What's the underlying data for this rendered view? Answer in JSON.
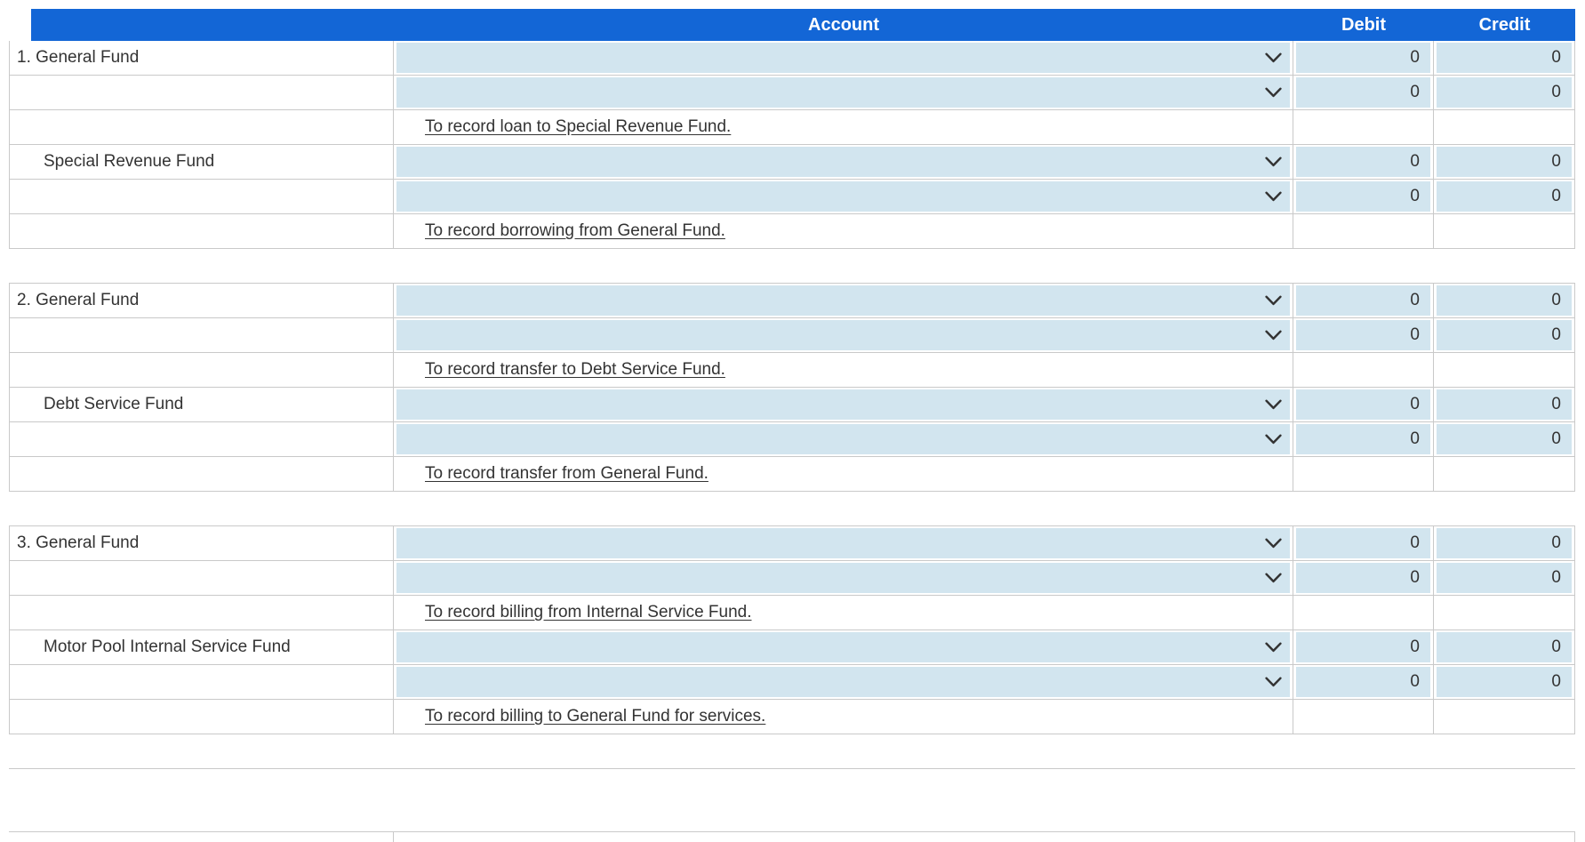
{
  "header": {
    "account": "Account",
    "debit": "Debit",
    "credit": "Credit"
  },
  "colors": {
    "header_bg": "#1366d6",
    "field_bg": "#d2e5ef",
    "border": "#c9c9c9",
    "text": "#333333"
  },
  "rows": [
    {
      "type": "entry",
      "fund": "1. General Fund",
      "account": "",
      "debit": "0",
      "credit": "0"
    },
    {
      "type": "entry",
      "fund": "",
      "account": "",
      "debit": "0",
      "credit": "0"
    },
    {
      "type": "description",
      "text": "To record loan to Special Revenue Fund."
    },
    {
      "type": "entry",
      "fund": "Special Revenue Fund",
      "account": "",
      "debit": "0",
      "credit": "0"
    },
    {
      "type": "entry",
      "fund": "",
      "account": "",
      "debit": "0",
      "credit": "0"
    },
    {
      "type": "description",
      "text": "To record borrowing from General Fund."
    },
    {
      "type": "spacer"
    },
    {
      "type": "entry",
      "fund": "2. General Fund",
      "account": "",
      "debit": "0",
      "credit": "0"
    },
    {
      "type": "entry",
      "fund": "",
      "account": "",
      "debit": "0",
      "credit": "0"
    },
    {
      "type": "description",
      "text": "To record transfer to Debt Service Fund."
    },
    {
      "type": "entry",
      "fund": "Debt Service Fund",
      "account": "",
      "debit": "0",
      "credit": "0"
    },
    {
      "type": "entry",
      "fund": "",
      "account": "",
      "debit": "0",
      "credit": "0"
    },
    {
      "type": "description",
      "text": "To record transfer from General Fund."
    },
    {
      "type": "spacer"
    },
    {
      "type": "entry",
      "fund": "3. General Fund",
      "account": "",
      "debit": "0",
      "credit": "0"
    },
    {
      "type": "entry",
      "fund": "",
      "account": "",
      "debit": "0",
      "credit": "0"
    },
    {
      "type": "description",
      "text": "To record billing from Internal Service Fund."
    },
    {
      "type": "entry",
      "fund": "Motor Pool Internal Service Fund",
      "account": "",
      "debit": "0",
      "credit": "0"
    },
    {
      "type": "entry",
      "fund": "",
      "account": "",
      "debit": "0",
      "credit": "0"
    },
    {
      "type": "description",
      "text": "To record billing to General Fund for services."
    },
    {
      "type": "spacer"
    }
  ]
}
